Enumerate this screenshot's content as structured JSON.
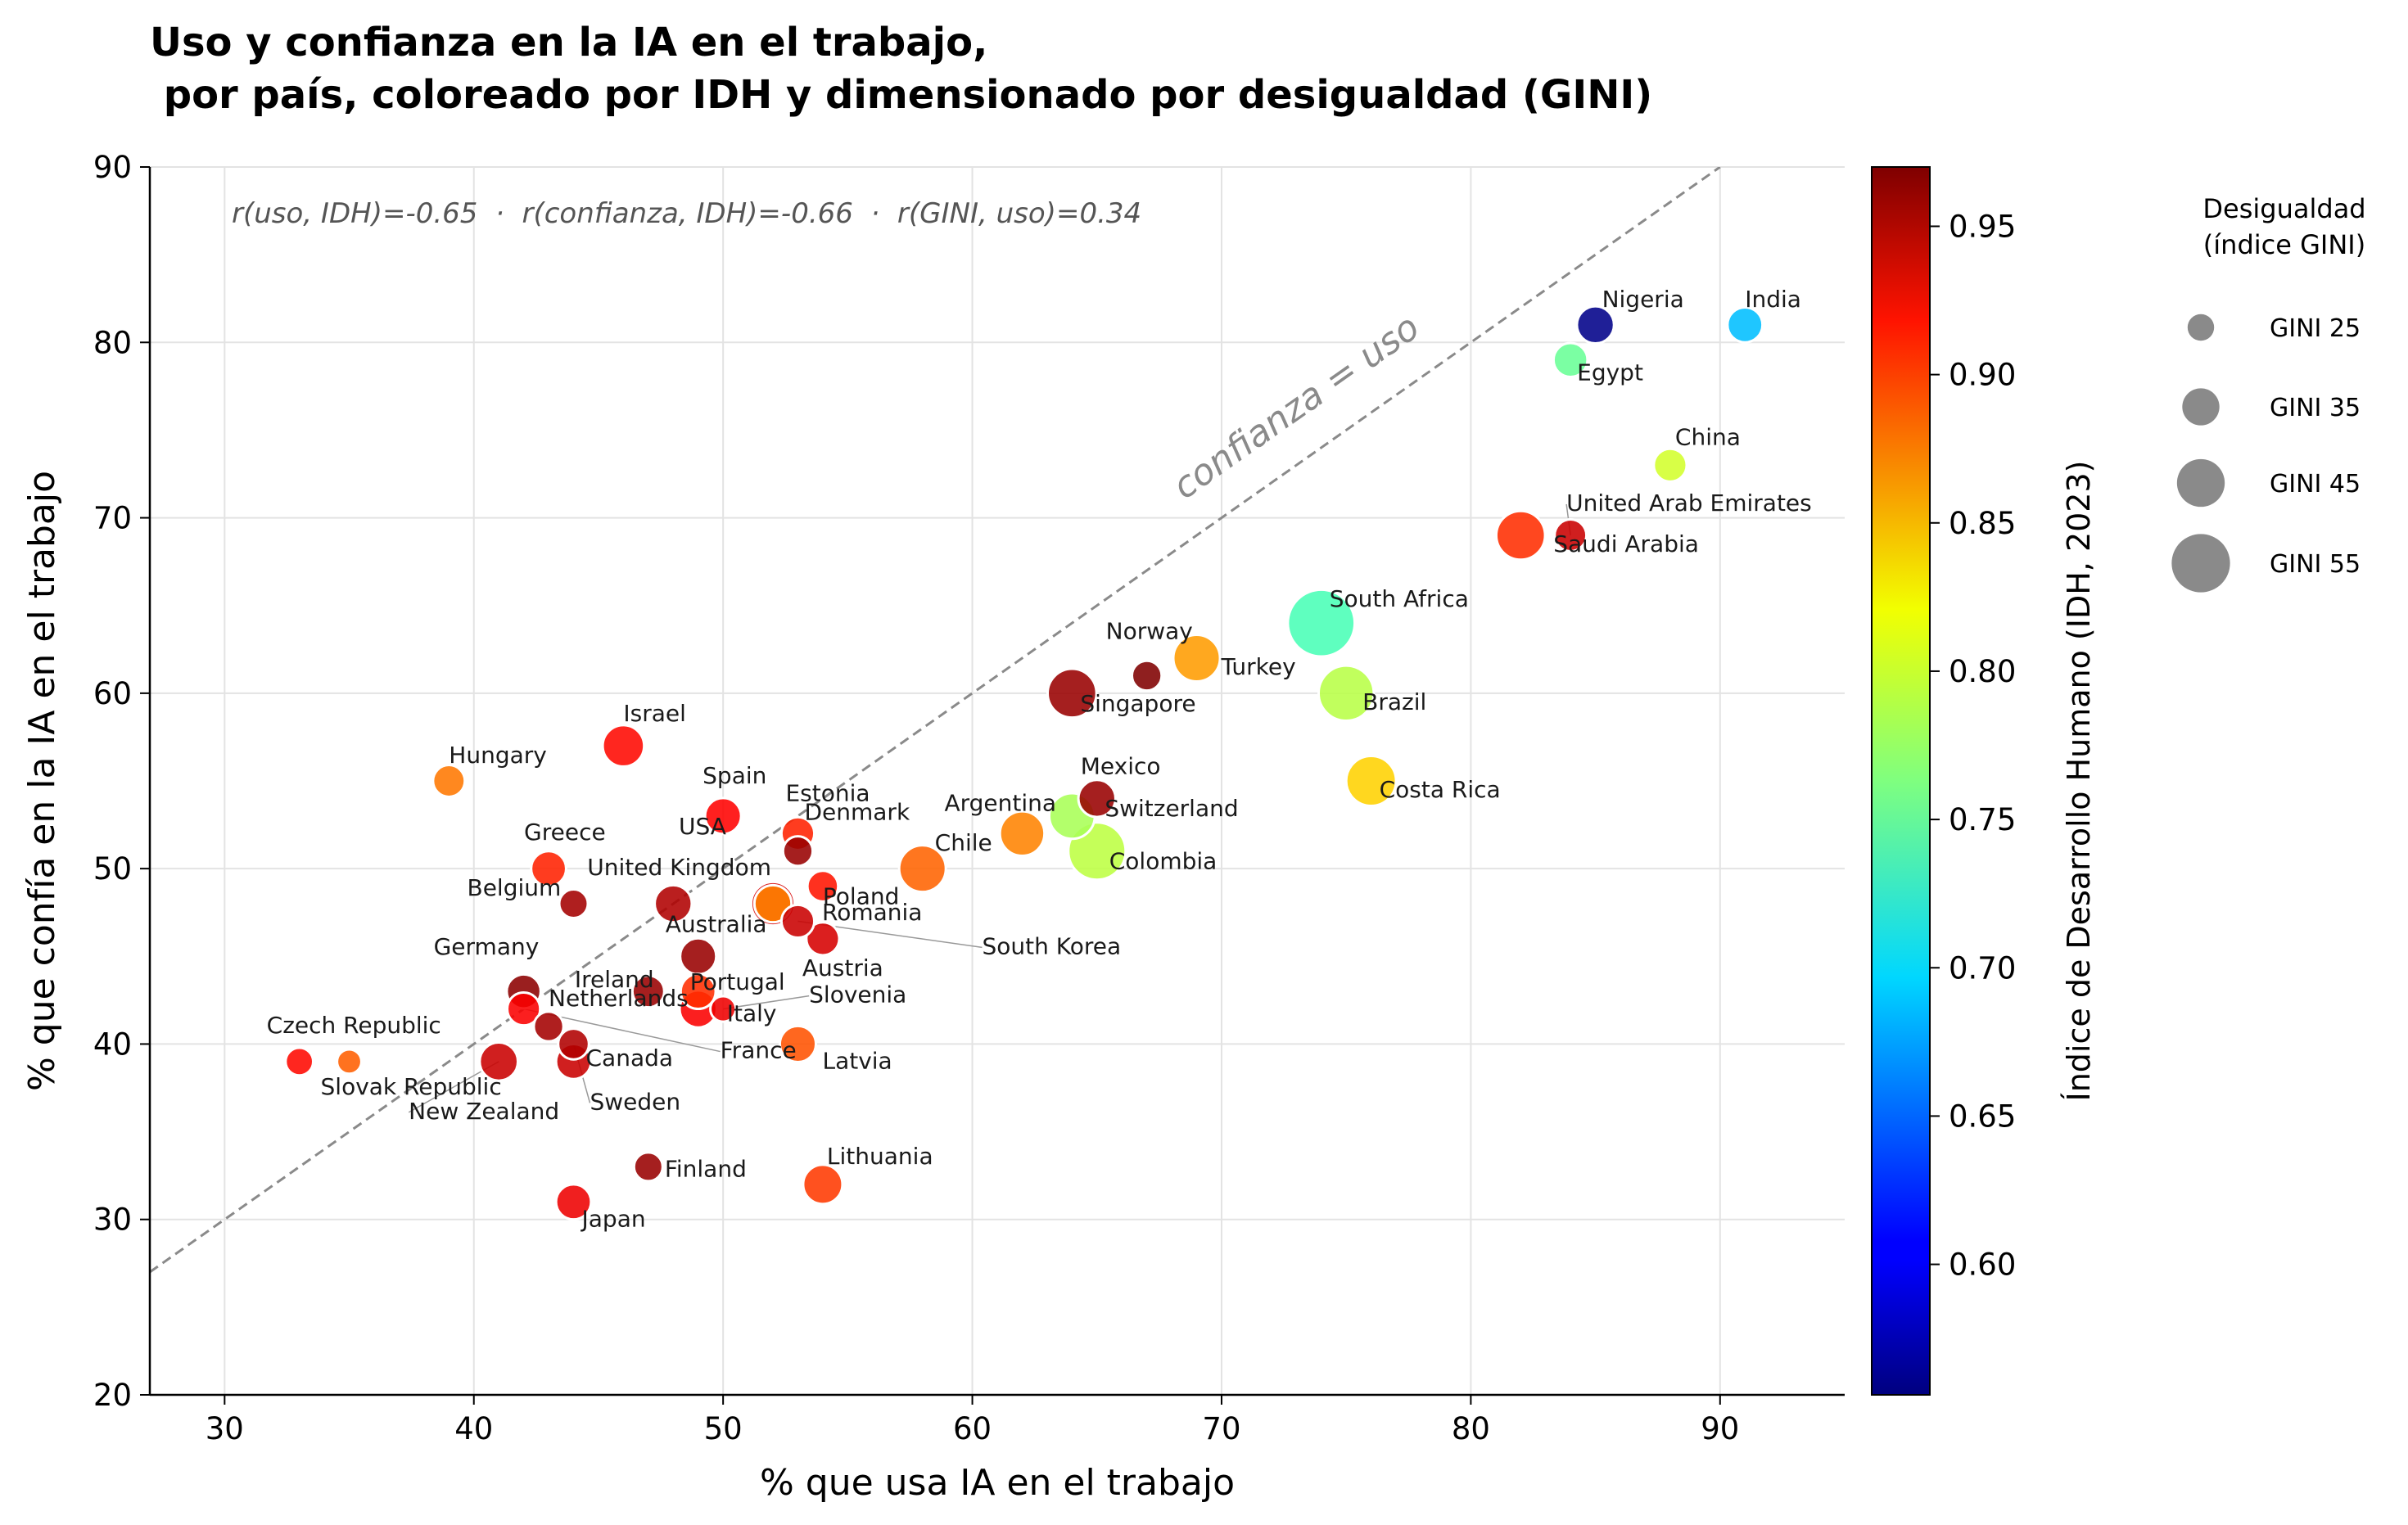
{
  "chart_data": {
    "type": "scatter",
    "title_line1": "Uso y confianza en la IA en el trabajo,",
    "title_line2": " por país, coloreado por IDH y dimensionado por desigualdad (GINI)",
    "xlabel": "% que usa IA en el trabajo",
    "ylabel": "% que confía en la IA en el trabajo",
    "xlim": [
      27,
      95
    ],
    "ylim": [
      20,
      90
    ],
    "xticks": [
      30,
      40,
      50,
      60,
      70,
      80,
      90
    ],
    "yticks": [
      20,
      30,
      40,
      50,
      60,
      70,
      80,
      90
    ],
    "grid": true,
    "annotation": "r(uso, IDH)=-0.65  ·  r(confianza, IDH)=-0.66  ·  r(GINI, uso)=0.34",
    "reference_line": {
      "label": "confianza = uso",
      "slope": 1,
      "intercept": 0
    },
    "colorbar": {
      "label": "Índice de Desarrollo Humano (IDH, 2023)",
      "range": [
        0.556,
        0.97
      ],
      "ticks": [
        "0.60",
        "0.65",
        "0.70",
        "0.75",
        "0.80",
        "0.85",
        "0.90",
        "0.95"
      ],
      "colormap": "jet"
    },
    "size_legend": {
      "title_line1": "Desigualdad",
      "title_line2": "(índice GINI)",
      "entries": [
        {
          "label": "GINI 25",
          "gini": 25
        },
        {
          "label": "GINI 35",
          "gini": 35
        },
        {
          "label": "GINI 45",
          "gini": 45
        },
        {
          "label": "GINI 55",
          "gini": 55
        }
      ]
    },
    "points": [
      {
        "country": "India",
        "x": 91,
        "y": 81,
        "hdi": 0.685,
        "gini": 33
      },
      {
        "country": "Nigeria",
        "x": 85,
        "y": 81,
        "hdi": 0.56,
        "gini": 35
      },
      {
        "country": "Egypt",
        "x": 84,
        "y": 79,
        "hdi": 0.754,
        "gini": 32
      },
      {
        "country": "China",
        "x": 88,
        "y": 73,
        "hdi": 0.797,
        "gini": 31
      },
      {
        "country": "United Arab Emirates",
        "x": 84,
        "y": 69,
        "hdi": 0.94,
        "gini": 30
      },
      {
        "country": "Saudi Arabia",
        "x": 82,
        "y": 69,
        "hdi": 0.9,
        "gini": 46
      },
      {
        "country": "South Africa",
        "x": 74,
        "y": 64,
        "hdi": 0.741,
        "gini": 63
      },
      {
        "country": "Turkey",
        "x": 69,
        "y": 62,
        "hdi": 0.855,
        "gini": 44
      },
      {
        "country": "Norway",
        "x": 67,
        "y": 61,
        "hdi": 0.97,
        "gini": 28
      },
      {
        "country": "Singapore",
        "x": 64,
        "y": 60,
        "hdi": 0.96,
        "gini": 46
      },
      {
        "country": "Brazil",
        "x": 75,
        "y": 60,
        "hdi": 0.786,
        "gini": 52
      },
      {
        "country": "Costa Rica",
        "x": 76,
        "y": 55,
        "hdi": 0.833,
        "gini": 47
      },
      {
        "country": "Mexico",
        "x": 65,
        "y": 54,
        "hdi": 0.96,
        "gini": 35
      },
      {
        "country": "Switzerland",
        "x": 64,
        "y": 53,
        "hdi": 0.78,
        "gini": 43
      },
      {
        "country": "Argentina",
        "x": 62,
        "y": 52,
        "hdi": 0.865,
        "gini": 42
      },
      {
        "country": "Colombia",
        "x": 65,
        "y": 51,
        "hdi": 0.788,
        "gini": 54
      },
      {
        "country": "Chile",
        "x": 58,
        "y": 50,
        "hdi": 0.878,
        "gini": 44
      },
      {
        "country": "Hungary",
        "x": 39,
        "y": 55,
        "hdi": 0.87,
        "gini": 30
      },
      {
        "country": "Israel",
        "x": 46,
        "y": 57,
        "hdi": 0.915,
        "gini": 39
      },
      {
        "country": "Spain",
        "x": 50,
        "y": 53,
        "hdi": 0.918,
        "gini": 34
      },
      {
        "country": "Estonia",
        "x": 53,
        "y": 52,
        "hdi": 0.905,
        "gini": 31
      },
      {
        "country": "Denmark",
        "x": 53,
        "y": 51,
        "hdi": 0.96,
        "gini": 28
      },
      {
        "country": "USA",
        "x": 52,
        "y": 48,
        "hdi": 0.935,
        "gini": 41
      },
      {
        "country": "Poland",
        "x": 54,
        "y": 49,
        "hdi": 0.91,
        "gini": 29
      },
      {
        "country": "Greece",
        "x": 43,
        "y": 50,
        "hdi": 0.905,
        "gini": 33
      },
      {
        "country": "Belgium",
        "x": 44,
        "y": 48,
        "hdi": 0.955,
        "gini": 27
      },
      {
        "country": "United Kingdom",
        "x": 48,
        "y": 48,
        "hdi": 0.95,
        "gini": 35
      },
      {
        "country": "Romania",
        "x": 52,
        "y": 48,
        "hdi": 0.865,
        "gini": 35
      },
      {
        "country": "Australia",
        "x": 49,
        "y": 45,
        "hdi": 0.96,
        "gini": 34
      },
      {
        "country": "Austria",
        "x": 54,
        "y": 46,
        "hdi": 0.935,
        "gini": 31
      },
      {
        "country": "South Korea",
        "x": 53,
        "y": 47,
        "hdi": 0.94,
        "gini": 31
      },
      {
        "country": "Germany",
        "x": 42,
        "y": 43,
        "hdi": 0.965,
        "gini": 32
      },
      {
        "country": "Ireland",
        "x": 47,
        "y": 43,
        "hdi": 0.96,
        "gini": 30
      },
      {
        "country": "Portugal",
        "x": 49,
        "y": 43,
        "hdi": 0.9,
        "gini": 33
      },
      {
        "country": "Netherlands",
        "x": 43,
        "y": 41,
        "hdi": 0.955,
        "gini": 28
      },
      {
        "country": "Italy",
        "x": 49,
        "y": 42,
        "hdi": 0.92,
        "gini": 35
      },
      {
        "country": "Slovenia",
        "x": 50,
        "y": 42,
        "hdi": 0.925,
        "gini": 24
      },
      {
        "country": "Latvia",
        "x": 53,
        "y": 40,
        "hdi": 0.885,
        "gini": 34
      },
      {
        "country": "Canada",
        "x": 44,
        "y": 39,
        "hdi": 0.94,
        "gini": 33
      },
      {
        "country": "France",
        "x": 42,
        "y": 42,
        "hdi": 0.92,
        "gini": 31
      },
      {
        "country": "Czech Republic",
        "x": 33,
        "y": 39,
        "hdi": 0.915,
        "gini": 26
      },
      {
        "country": "Slovak Republic",
        "x": 35,
        "y": 39,
        "hdi": 0.88,
        "gini": 23
      },
      {
        "country": "New Zealand",
        "x": 41,
        "y": 39,
        "hdi": 0.94,
        "gini": 36
      },
      {
        "country": "Sweden",
        "x": 44,
        "y": 40,
        "hdi": 0.95,
        "gini": 29
      },
      {
        "country": "Finland",
        "x": 47,
        "y": 33,
        "hdi": 0.96,
        "gini": 27
      },
      {
        "country": "Japan",
        "x": 44,
        "y": 31,
        "hdi": 0.925,
        "gini": 33
      },
      {
        "country": "Lithuania",
        "x": 54,
        "y": 32,
        "hdi": 0.895,
        "gini": 37
      }
    ],
    "label_placement": [
      {
        "country": "India",
        "dx": 0,
        "dy": -22,
        "anchor": "start"
      },
      {
        "country": "Nigeria",
        "dx": 8,
        "dy": -22,
        "anchor": "start"
      },
      {
        "country": "Egypt",
        "dx": 8,
        "dy": 25,
        "anchor": "start"
      },
      {
        "country": "China",
        "dx": 6,
        "dy": -25,
        "anchor": "start"
      },
      {
        "country": "United Arab Emirates",
        "dx": -5,
        "dy": -30,
        "anchor": "start",
        "leader": true
      },
      {
        "country": "Saudi Arabia",
        "dx": 40,
        "dy": 20,
        "anchor": "start"
      },
      {
        "country": "South Africa",
        "dx": 10,
        "dy": -20,
        "anchor": "start"
      },
      {
        "country": "Turkey",
        "dx": 30,
        "dy": 20,
        "anchor": "start"
      },
      {
        "country": "Norway",
        "dx": -50,
        "dy": -45,
        "anchor": "start"
      },
      {
        "country": "Singapore",
        "dx": 10,
        "dy": 22,
        "anchor": "start"
      },
      {
        "country": "Brazil",
        "dx": 20,
        "dy": 20,
        "anchor": "start"
      },
      {
        "country": "Costa Rica",
        "dx": 10,
        "dy": 20,
        "anchor": "start"
      },
      {
        "country": "Mexico",
        "dx": -20,
        "dy": -30,
        "anchor": "start"
      },
      {
        "country": "Switzerland",
        "dx": 40,
        "dy": 0,
        "anchor": "start"
      },
      {
        "country": "Argentina",
        "dx": -95,
        "dy": -28,
        "anchor": "start"
      },
      {
        "country": "Colombia",
        "dx": 15,
        "dy": 22,
        "anchor": "start"
      },
      {
        "country": "Chile",
        "dx": 15,
        "dy": -22,
        "anchor": "start"
      },
      {
        "country": "Hungary",
        "dx": 0,
        "dy": -22,
        "anchor": "start"
      },
      {
        "country": "Israel",
        "dx": 0,
        "dy": -30,
        "anchor": "start"
      },
      {
        "country": "Spain",
        "dx": -25,
        "dy": -40,
        "anchor": "start"
      },
      {
        "country": "Estonia",
        "dx": -15,
        "dy": -40,
        "anchor": "start"
      },
      {
        "country": "Denmark",
        "dx": 8,
        "dy": -38,
        "anchor": "start"
      },
      {
        "country": "USA",
        "dx": -115,
        "dy": -85,
        "anchor": "start"
      },
      {
        "country": "Poland",
        "dx": 0,
        "dy": 22,
        "anchor": "start"
      },
      {
        "country": "Greece",
        "dx": -30,
        "dy": -35,
        "anchor": "start"
      },
      {
        "country": "Belgium",
        "dx": -130,
        "dy": -10,
        "anchor": "start"
      },
      {
        "country": "United Kingdom",
        "dx": -105,
        "dy": -35,
        "anchor": "start"
      },
      {
        "country": "Romania",
        "dx": 60,
        "dy": 20,
        "anchor": "start"
      },
      {
        "country": "Australia",
        "dx": -40,
        "dy": -30,
        "anchor": "start"
      },
      {
        "country": "Austria",
        "dx": -25,
        "dy": 45,
        "anchor": "start"
      },
      {
        "country": "South Korea",
        "dx": 225,
        "dy": 40,
        "anchor": "start",
        "leader": true
      },
      {
        "country": "Germany",
        "dx": -110,
        "dy": -45,
        "anchor": "start"
      },
      {
        "country": "Ireland",
        "dx": -90,
        "dy": -5,
        "anchor": "start"
      },
      {
        "country": "Portugal",
        "dx": -10,
        "dy": -2,
        "anchor": "start"
      },
      {
        "country": "Netherlands",
        "dx": 0,
        "dy": -25,
        "anchor": "start"
      },
      {
        "country": "Italy",
        "dx": 35,
        "dy": 15,
        "anchor": "start"
      },
      {
        "country": "Slovenia",
        "dx": 105,
        "dy": -8,
        "anchor": "start",
        "leader": true
      },
      {
        "country": "Latvia",
        "dx": 30,
        "dy": 30,
        "anchor": "start"
      },
      {
        "country": "Canada",
        "dx": 15,
        "dy": 5,
        "anchor": "start"
      },
      {
        "country": "France",
        "dx": 240,
        "dy": 60,
        "anchor": "start",
        "leader": true
      },
      {
        "country": "Czech Republic",
        "dx": -40,
        "dy": -35,
        "anchor": "start"
      },
      {
        "country": "Slovak Republic",
        "dx": -35,
        "dy": 40,
        "anchor": "start"
      },
      {
        "country": "New Zealand",
        "dx": -110,
        "dy": 70,
        "anchor": "start",
        "leader": true
      },
      {
        "country": "Sweden",
        "dx": 20,
        "dy": 80,
        "anchor": "start",
        "leader": true
      },
      {
        "country": "Finland",
        "dx": 20,
        "dy": 12,
        "anchor": "start"
      },
      {
        "country": "Japan",
        "dx": 10,
        "dy": 30,
        "anchor": "start"
      },
      {
        "country": "Lithuania",
        "dx": 5,
        "dy": -25,
        "anchor": "start"
      }
    ]
  }
}
